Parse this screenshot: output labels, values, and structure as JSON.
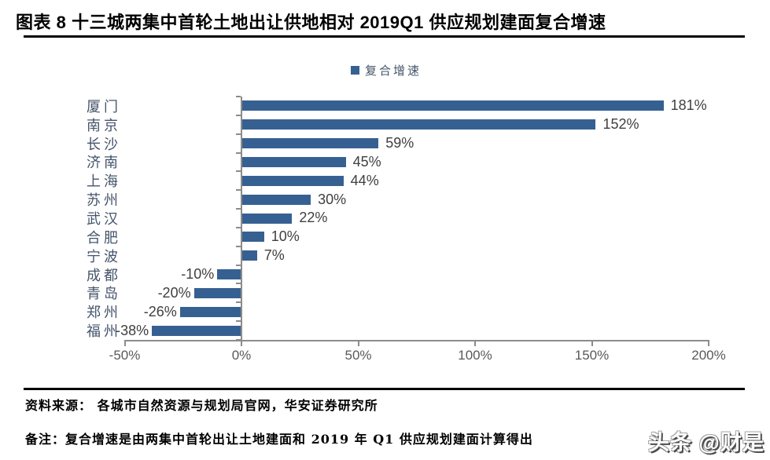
{
  "header": {
    "title": "图表 8 十三城两集中首轮土地出让供地相对 2019Q1 供应规划建面复合增速"
  },
  "legend": {
    "label": "复合增速"
  },
  "chart_data": {
    "type": "bar",
    "orientation": "horizontal",
    "title": "十三城两集中首轮土地出让供地相对 2019Q1 供应规划建面复合增速",
    "categories": [
      "厦门",
      "南京",
      "长沙",
      "济南",
      "上海",
      "苏州",
      "武汉",
      "合肥",
      "宁波",
      "成都",
      "青岛",
      "郑州",
      "福州"
    ],
    "series": [
      {
        "name": "复合增速",
        "values": [
          181,
          152,
          59,
          45,
          44,
          30,
          22,
          10,
          7,
          -10,
          -20,
          -26,
          -38
        ]
      }
    ],
    "value_labels": [
      "181%",
      "152%",
      "59%",
      "45%",
      "44%",
      "30%",
      "22%",
      "10%",
      "7%",
      "-10%",
      "-20%",
      "-26%",
      "-38%"
    ],
    "unit": "%",
    "xlim": [
      -50,
      200
    ],
    "x_ticks": [
      -50,
      0,
      50,
      100,
      150,
      200
    ],
    "x_tick_labels": [
      "-50%",
      "0%",
      "50%",
      "100%",
      "150%",
      "200%"
    ],
    "grid": false,
    "legend_position": "top-center"
  },
  "colors": {
    "bar": "#376092",
    "axis": "#8c8c8c",
    "tick_label": "#595959",
    "category_label": "#44546a",
    "value_label": "#3f3f3f",
    "title": "#000000"
  },
  "footer": {
    "source": "资料来源： 各城市自然资源与规划局官网，华安证券研究所",
    "note": "备注：复合增速是由两集中首轮出让土地建面和 2019 年 Q1 供应规划建面计算得出",
    "watermark": "头条 @财是"
  }
}
